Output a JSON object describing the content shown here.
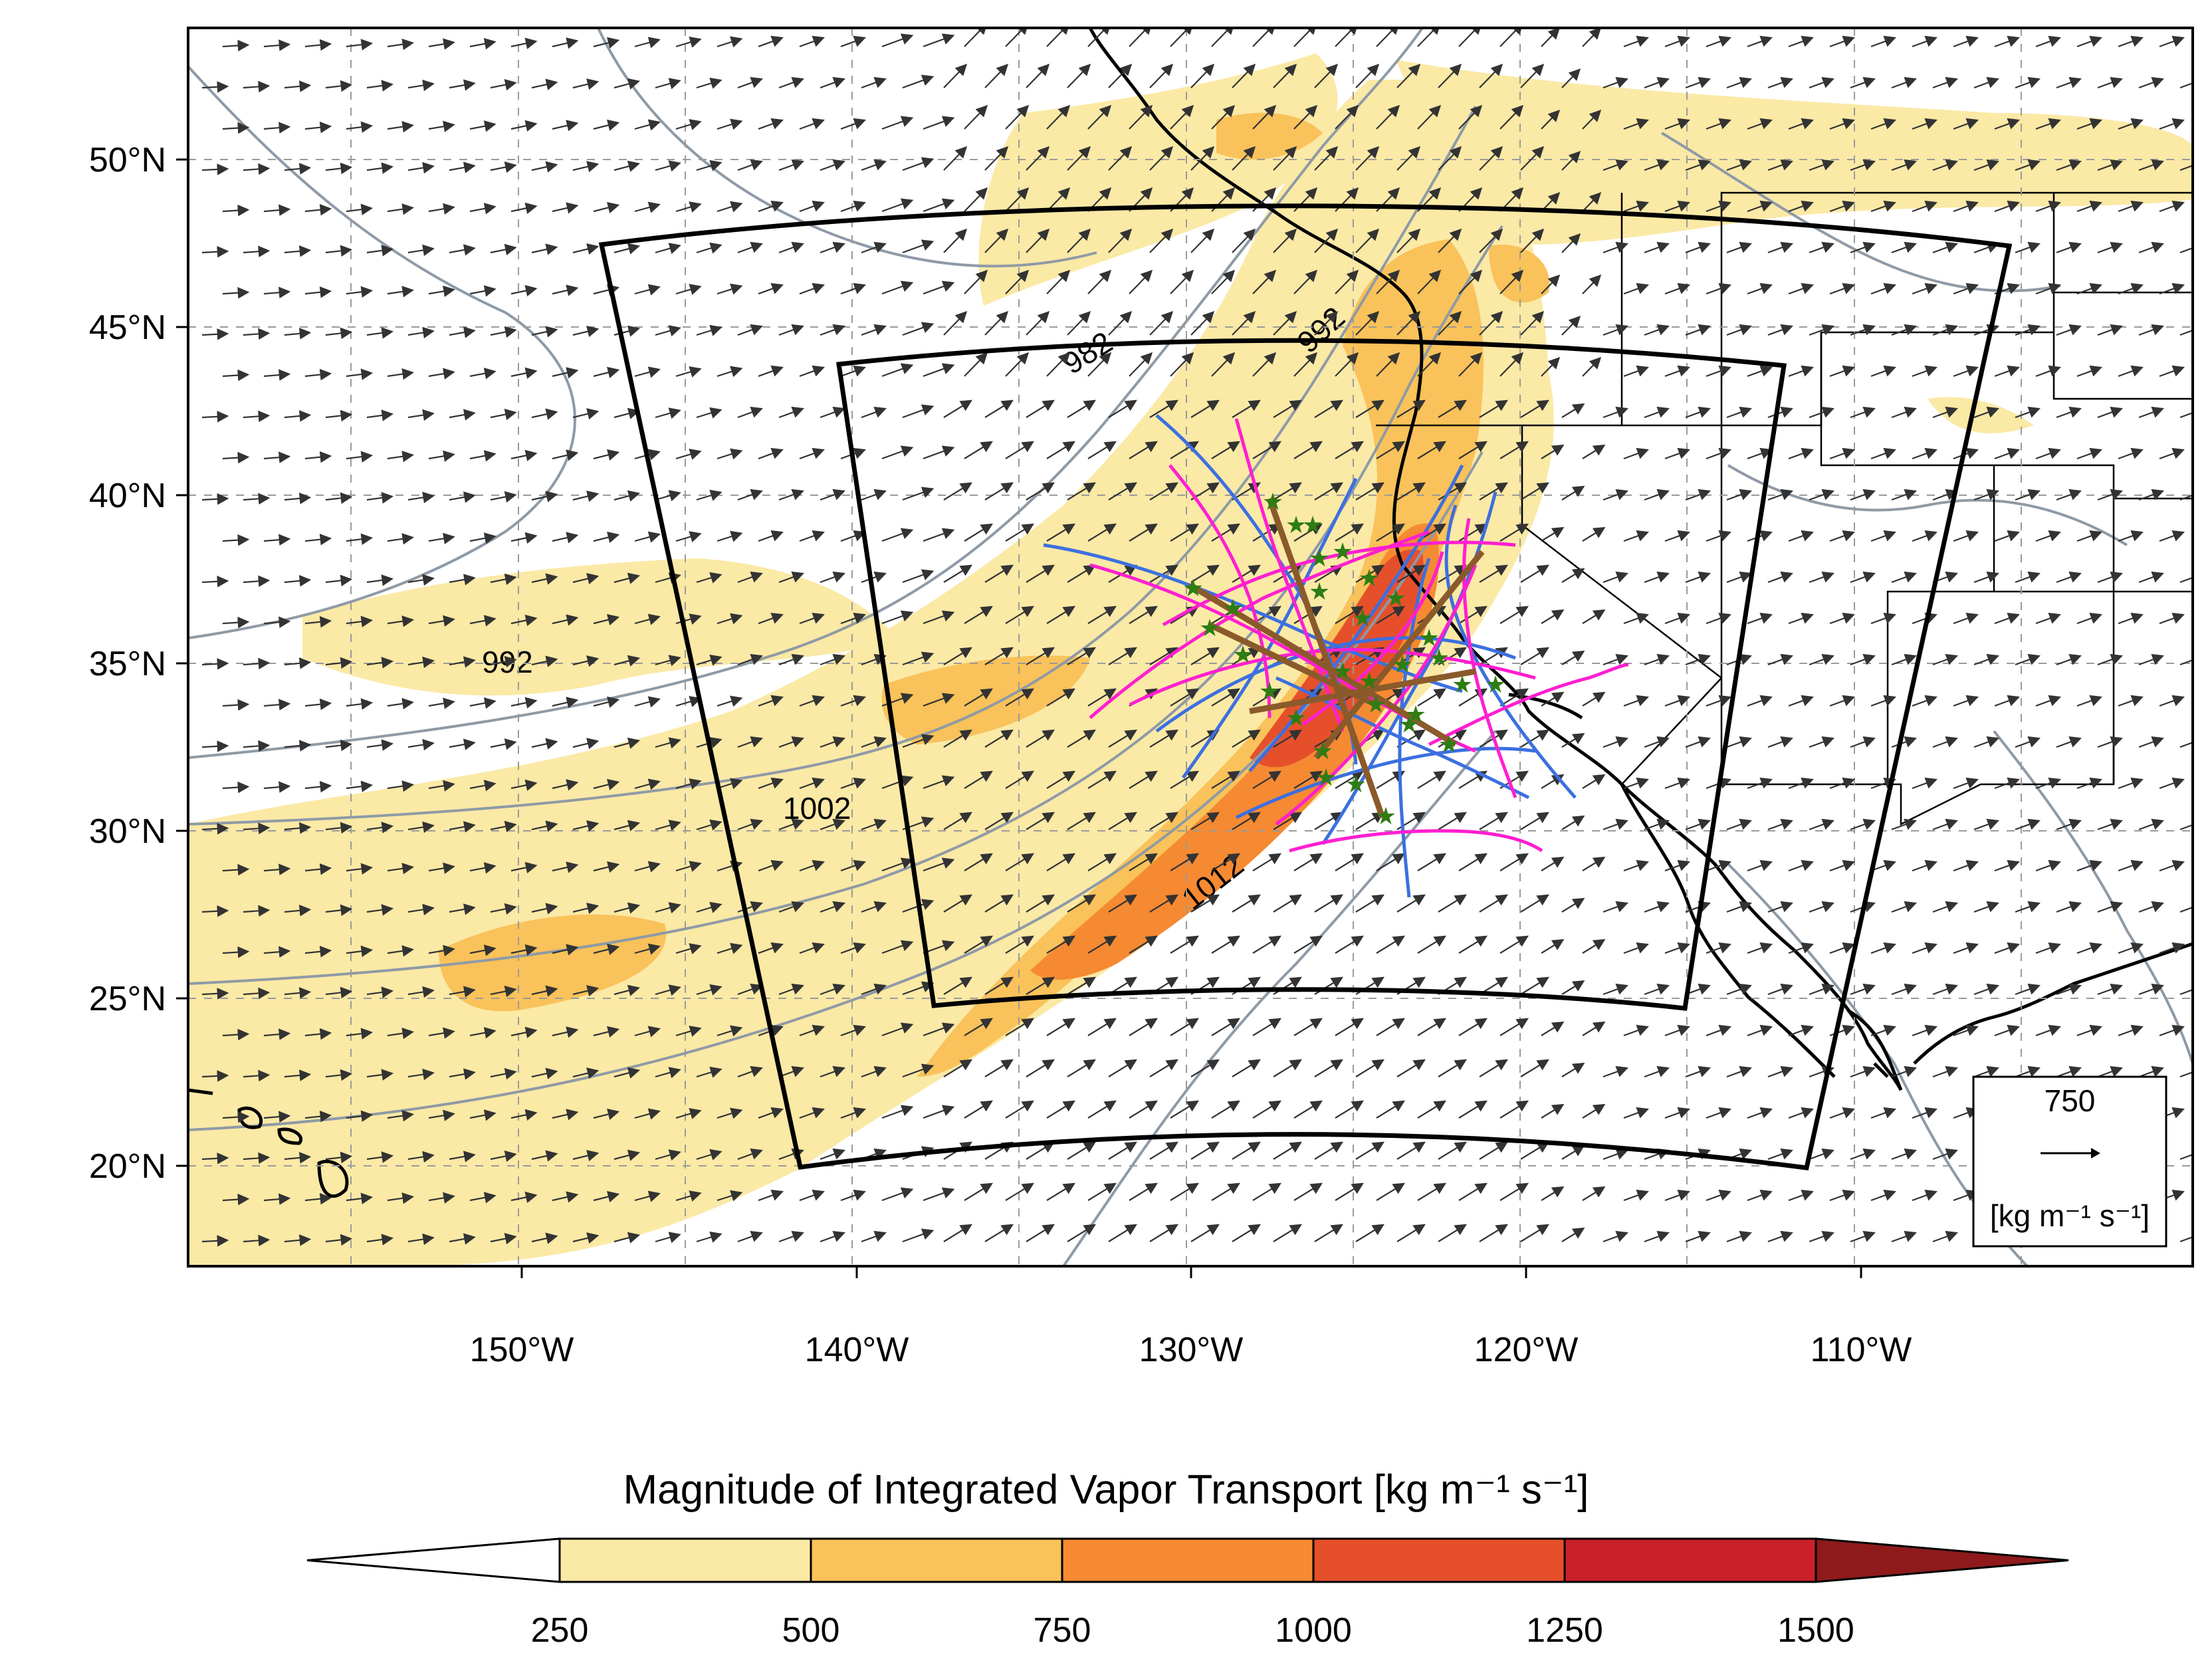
{
  "map": {
    "lat_ticks": [
      "50°N",
      "45°N",
      "40°N",
      "35°N",
      "30°N",
      "25°N",
      "20°N"
    ],
    "lon_ticks": [
      "150°W",
      "140°W",
      "130°W",
      "120°W",
      "110°W"
    ],
    "contour_labels": [
      "992",
      "982",
      "992",
      "1002",
      "1012"
    ],
    "reference_vector": {
      "magnitude": "750",
      "unit": "[kg m⁻¹ s⁻¹]"
    }
  },
  "colorbar": {
    "title": "Magnitude of Integrated Vapor Transport  [kg m⁻¹ s⁻¹]",
    "ticks": [
      "250",
      "500",
      "750",
      "1000",
      "1250",
      "1500"
    ],
    "colors": [
      "#ffffff",
      "#fbe9a6",
      "#f9c25a",
      "#f58a32",
      "#e5502b",
      "#c9202a",
      "#8e1a1b"
    ]
  }
}
